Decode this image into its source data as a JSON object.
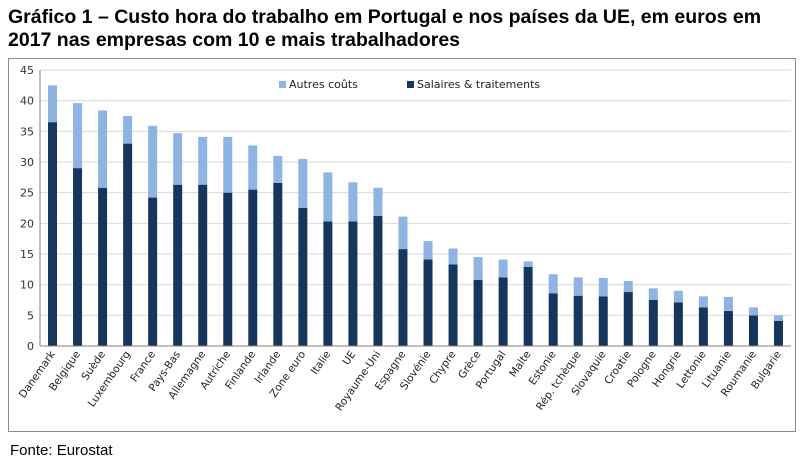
{
  "header": {
    "title": "Gráfico 1 – Custo hora do trabalho em Portugal e nos países da UE, em euros em 2017 nas empresas com 10 e mais trabalhadores"
  },
  "footer": {
    "source": "Fonte: Eurostat"
  },
  "colors": {
    "series_top": "#8db4e2",
    "series_bottom": "#17365d",
    "gridline": "#d9d9d9",
    "axis": "#7f7f7f"
  },
  "chart_data": {
    "type": "bar",
    "stacked": true,
    "categories": [
      "Danemark",
      "Belgique",
      "Suède",
      "Luxembourg",
      "France",
      "Pays-Bas",
      "Allemagne",
      "Autriche",
      "Finlande",
      "Irlande",
      "Zone euro",
      "Italie",
      "UE",
      "Royaume-Uni",
      "Espagne",
      "Slovénie",
      "Chypre",
      "Grèce",
      "Portugal",
      "Malte",
      "Estonie",
      "Rép. tchèque",
      "Slovaquie",
      "Croatie",
      "Pologne",
      "Hongrie",
      "Lettonie",
      "Lituanie",
      "Roumanie",
      "Bulgarie"
    ],
    "series": [
      {
        "name": "Salaires & traitements",
        "values": [
          36.5,
          29,
          25.8,
          33,
          24.2,
          26.3,
          26.3,
          25,
          25.5,
          26.6,
          22.5,
          20.3,
          20.3,
          21.2,
          15.8,
          14.1,
          13.3,
          10.8,
          11.2,
          12.9,
          8.6,
          8.2,
          8.1,
          8.8,
          7.5,
          7.1,
          6.3,
          5.7,
          5,
          4.1
        ]
      },
      {
        "name": "Autres coûts",
        "values": [
          6,
          10.6,
          12.6,
          4.5,
          11.7,
          8.4,
          7.8,
          9.1,
          7.2,
          4.4,
          8,
          8,
          6.4,
          4.6,
          5.3,
          3,
          2.6,
          3.7,
          2.9,
          0.9,
          3.1,
          3,
          3,
          1.8,
          1.9,
          1.9,
          1.8,
          2.3,
          1.3,
          0.9
        ]
      }
    ],
    "yticks": [
      0,
      5,
      10,
      15,
      20,
      25,
      30,
      35,
      40,
      45
    ],
    "ylim": [
      0,
      45
    ],
    "grid": true,
    "legend_position": "top-center",
    "xlabel": "",
    "ylabel": ""
  }
}
